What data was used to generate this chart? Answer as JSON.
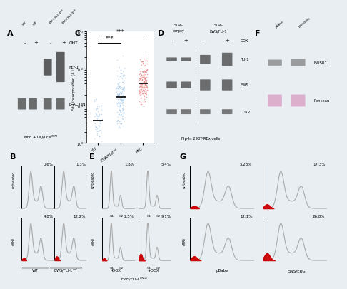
{
  "background_color": "#e8eef2",
  "panel_bg": "#ffffff",
  "panel_label_fontsize": 8,
  "B": {
    "configs": [
      {
        "label": "0.6%",
        "has_red": false,
        "red_size": "none",
        "row": 0,
        "col": 0
      },
      {
        "label": "1.3%",
        "has_red": false,
        "red_size": "none",
        "row": 0,
        "col": 1
      },
      {
        "label": "4.8%",
        "has_red": true,
        "red_size": "small",
        "row": 1,
        "col": 0
      },
      {
        "label": "12.2%",
        "has_red": true,
        "red_size": "medium",
        "row": 1,
        "col": 1
      }
    ],
    "col_labels": [
      "WT",
      "EWS/FLI-1$^{ind}$"
    ],
    "row_labels": [
      "untreated",
      "ATRi"
    ],
    "style": "broad"
  },
  "E": {
    "configs": [
      {
        "label": "1.8%",
        "has_red": false,
        "red_size": "none",
        "row": 0,
        "col": 0
      },
      {
        "label": "5.4%",
        "has_red": false,
        "red_size": "small",
        "row": 0,
        "col": 1
      },
      {
        "label": "2.5%",
        "has_red": true,
        "red_size": "small",
        "row": 1,
        "col": 0
      },
      {
        "label": "9.1%",
        "has_red": true,
        "red_size": "large",
        "row": 1,
        "col": 1
      }
    ],
    "col_labels": [
      "-DOX",
      "+DOX"
    ],
    "row_labels": [
      "untreated",
      "ATRi"
    ],
    "xlabel": "EWS/FLI-1$^{STAG}$",
    "style": "narrow"
  },
  "G": {
    "configs": [
      {
        "label": "5.28%",
        "has_red": true,
        "red_size": "small",
        "row": 0,
        "col": 0
      },
      {
        "label": "17.3%",
        "has_red": true,
        "red_size": "medium",
        "row": 0,
        "col": 1
      },
      {
        "label": "12.1%",
        "has_red": true,
        "red_size": "medium",
        "row": 1,
        "col": 0
      },
      {
        "label": "26.8%",
        "has_red": true,
        "red_size": "large",
        "row": 1,
        "col": 1
      }
    ],
    "col_labels": [
      "pBabe",
      "EWS/ERG"
    ],
    "row_labels": [
      "untreated",
      "ATRi"
    ],
    "style": "broad"
  }
}
